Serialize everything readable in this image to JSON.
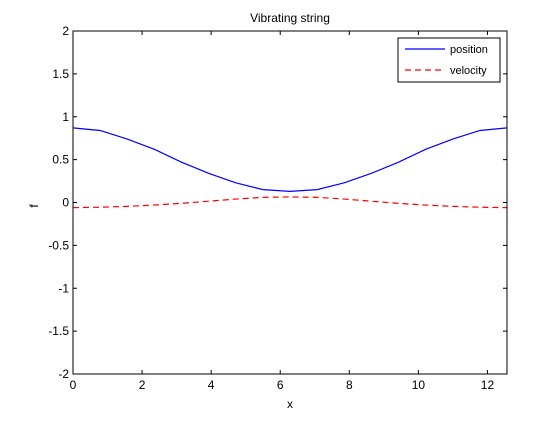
{
  "chart_data": {
    "type": "line",
    "title": "Vibrating string",
    "xlabel": "x",
    "ylabel": "f",
    "xlim": [
      0,
      12.566
    ],
    "ylim": [
      -2,
      2
    ],
    "x_ticks": [
      0,
      2,
      4,
      6,
      8,
      10,
      12
    ],
    "x_tick_labels": [
      "0",
      "2",
      "4",
      "6",
      "8",
      "10",
      "12"
    ],
    "y_ticks": [
      -2,
      -1.5,
      -1,
      -0.5,
      0,
      0.5,
      1,
      1.5,
      2
    ],
    "y_tick_labels": [
      "-2",
      "-1.5",
      "-1",
      "-0.5",
      "0",
      "0.5",
      "1",
      "1.5",
      "2"
    ],
    "grid": false,
    "legend_position": "top-right",
    "x": [
      0,
      0.785,
      1.571,
      2.356,
      3.142,
      3.927,
      4.712,
      5.498,
      6.283,
      7.069,
      7.854,
      8.639,
      9.425,
      10.21,
      10.996,
      11.781,
      12.566
    ],
    "series": [
      {
        "name": "position",
        "color": "#0000ff",
        "dash": "solid",
        "values": [
          0.87,
          0.84,
          0.74,
          0.62,
          0.47,
          0.34,
          0.23,
          0.15,
          0.13,
          0.15,
          0.23,
          0.34,
          0.47,
          0.62,
          0.74,
          0.84,
          0.87
        ]
      },
      {
        "name": "velocity",
        "color": "#ff0000",
        "dash": "dashed",
        "values": [
          -0.06,
          -0.055,
          -0.045,
          -0.03,
          -0.01,
          0.015,
          0.04,
          0.06,
          0.065,
          0.06,
          0.04,
          0.015,
          -0.01,
          -0.03,
          -0.045,
          -0.055,
          -0.06
        ]
      }
    ]
  }
}
